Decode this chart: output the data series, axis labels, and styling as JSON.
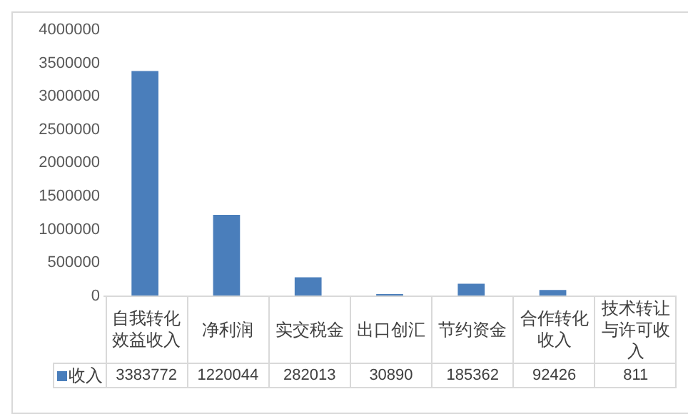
{
  "chart_data": {
    "type": "bar",
    "categories": [
      "自我转化效益收入",
      "净利润",
      "实交税金",
      "出口创汇",
      "节约资金",
      "合作转化收入",
      "技术转让与许可收入"
    ],
    "series": [
      {
        "name": "收入",
        "color": "#4a7ebb",
        "values": [
          3383772,
          1220044,
          282013,
          30890,
          185362,
          92426,
          811
        ]
      }
    ],
    "ylim": [
      0,
      4000000
    ],
    "yticks": [
      0,
      500000,
      1000000,
      1500000,
      2000000,
      2500000,
      3000000,
      3500000,
      4000000
    ],
    "grid": false,
    "legend": "bottom",
    "data_labels": true
  }
}
